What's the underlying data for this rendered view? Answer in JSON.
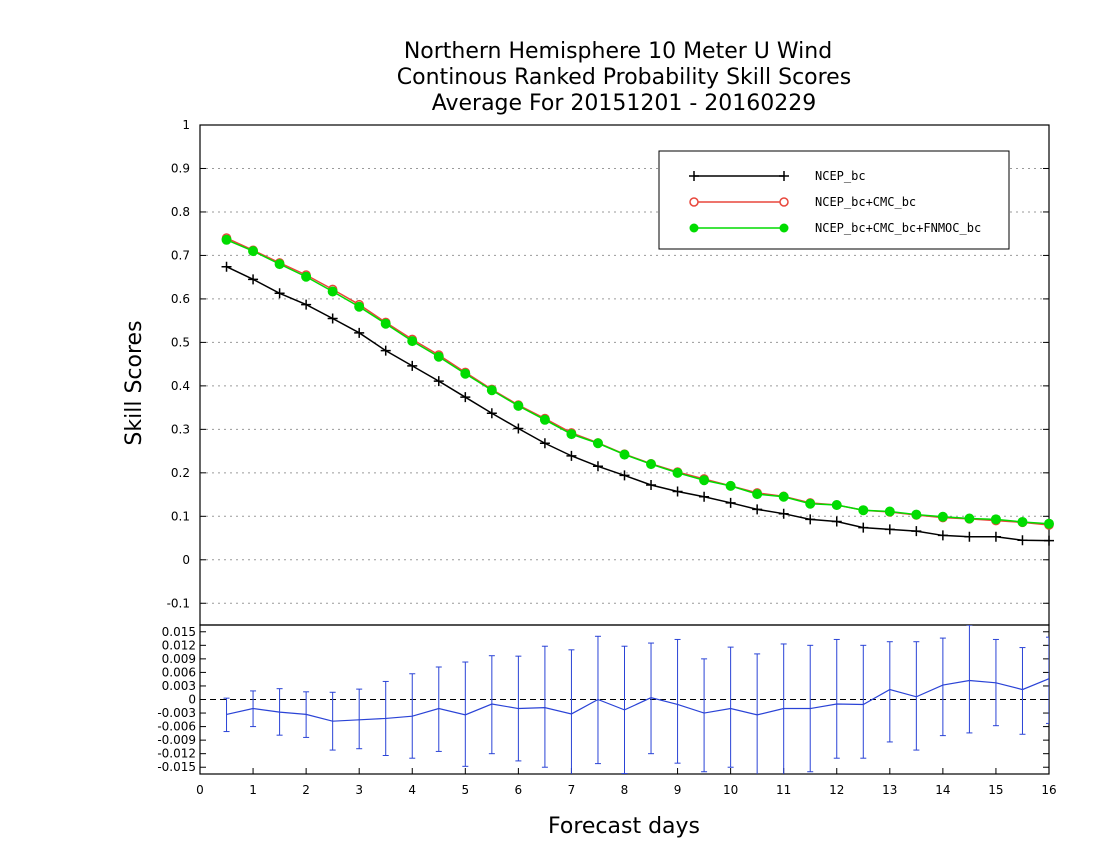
{
  "title": {
    "line1": "Northern Hemisphere 10 Meter U Wind",
    "line2": "Continous Ranked Probability Skill Scores",
    "line3": "Average For 20151201 - 20160229"
  },
  "chart_data": [
    {
      "type": "line",
      "ylabel": "Skill Scores",
      "xlabel": "Forecast days",
      "xlim": [
        0,
        16
      ],
      "ylim": [
        -0.15,
        1.0
      ],
      "yticks": [
        "1",
        "0.9",
        "0.8",
        "0.7",
        "0.6",
        "0.5",
        "0.4",
        "0.3",
        "0.2",
        "0.1",
        "0",
        "-0.1"
      ],
      "grid": true,
      "legend_position": "top-right",
      "x": [
        0.5,
        1.0,
        1.5,
        2.0,
        2.5,
        3.0,
        3.5,
        4.0,
        4.5,
        5.0,
        5.5,
        6.0,
        6.5,
        7.0,
        7.5,
        8.0,
        8.5,
        9.0,
        9.5,
        10.0,
        10.5,
        11.0,
        11.5,
        12.0,
        12.5,
        13.0,
        13.5,
        14.0,
        14.5,
        15.0,
        15.5,
        16.0
      ],
      "series": [
        {
          "name": "NCEP_bc",
          "color": "#000000",
          "marker": "plus",
          "values": [
            0.674,
            0.645,
            0.613,
            0.587,
            0.555,
            0.522,
            0.481,
            0.446,
            0.411,
            0.374,
            0.337,
            0.302,
            0.268,
            0.239,
            0.215,
            0.194,
            0.172,
            0.157,
            0.145,
            0.131,
            0.116,
            0.106,
            0.093,
            0.088,
            0.074,
            0.07,
            0.066,
            0.056,
            0.053,
            0.053,
            0.045,
            0.044
          ]
        },
        {
          "name": "NCEP_bc+CMC_bc",
          "color": "#e8463b",
          "marker": "open-circle",
          "values": [
            0.74,
            0.712,
            0.683,
            0.655,
            0.622,
            0.587,
            0.546,
            0.507,
            0.471,
            0.431,
            0.392,
            0.356,
            0.325,
            0.292,
            0.269,
            0.243,
            0.221,
            0.202,
            0.186,
            0.17,
            0.154,
            0.146,
            0.131,
            0.126,
            0.114,
            0.11,
            0.103,
            0.097,
            0.094,
            0.09,
            0.086,
            0.08
          ]
        },
        {
          "name": "NCEP_bc+CMC_bc+FNMOC_bc",
          "color": "#00dc00",
          "marker": "filled-circle",
          "values": [
            0.736,
            0.71,
            0.68,
            0.651,
            0.617,
            0.582,
            0.543,
            0.503,
            0.467,
            0.428,
            0.39,
            0.354,
            0.322,
            0.289,
            0.268,
            0.242,
            0.22,
            0.2,
            0.183,
            0.17,
            0.151,
            0.145,
            0.129,
            0.126,
            0.114,
            0.111,
            0.104,
            0.099,
            0.095,
            0.093,
            0.087,
            0.083
          ]
        }
      ]
    },
    {
      "type": "line",
      "xlabel": "Forecast days",
      "xlim": [
        0,
        16
      ],
      "xticks": [
        "0",
        "1",
        "2",
        "3",
        "4",
        "5",
        "6",
        "7",
        "8",
        "9",
        "10",
        "11",
        "12",
        "13",
        "14",
        "15",
        "16"
      ],
      "ylim": [
        -0.0165,
        0.0165
      ],
      "yticks": [
        "0.015",
        "0.012",
        "0.009",
        "0.006",
        "0.003",
        "0",
        "-0.003",
        "-0.006",
        "-0.009",
        "-0.012",
        "-0.015"
      ],
      "reference_line": 0,
      "x": [
        0.5,
        1.0,
        1.5,
        2.0,
        2.5,
        3.0,
        3.5,
        4.0,
        4.5,
        5.0,
        5.5,
        6.0,
        6.5,
        7.0,
        7.5,
        8.0,
        8.5,
        9.0,
        9.5,
        10.0,
        10.5,
        11.0,
        11.5,
        12.0,
        12.5,
        13.0,
        13.5,
        14.0,
        14.5,
        15.0,
        15.5,
        16.0
      ],
      "series": [
        {
          "color": "#2a43d6",
          "error_bars": true,
          "values": [
            -0.0033,
            -0.002,
            -0.0028,
            -0.0033,
            -0.0048,
            -0.0045,
            -0.0042,
            -0.0037,
            -0.002,
            -0.0034,
            -0.001,
            -0.002,
            -0.0018,
            -0.0032,
            0.0,
            -0.0023,
            0.0004,
            -0.0011,
            -0.003,
            -0.002,
            -0.0034,
            -0.002,
            -0.002,
            -0.001,
            -0.0011,
            0.0022,
            0.0006,
            0.0032,
            0.0042,
            0.0037,
            0.0022,
            0.0046
          ],
          "upper": [
            0.0003,
            0.0019,
            0.0024,
            0.0017,
            0.0016,
            0.0023,
            0.004,
            0.0057,
            0.0072,
            0.0083,
            0.0097,
            0.0096,
            0.0118,
            0.011,
            0.014,
            0.0118,
            0.0125,
            0.0133,
            0.009,
            0.0116,
            0.0101,
            0.0123,
            0.012,
            0.0133,
            0.012,
            0.0128,
            0.0128,
            0.0136,
            0.0165,
            0.0133,
            0.0115,
            0.0138
          ],
          "lower": [
            -0.0071,
            -0.006,
            -0.0079,
            -0.0084,
            -0.0112,
            -0.0109,
            -0.0124,
            -0.013,
            -0.0115,
            -0.0148,
            -0.012,
            -0.0136,
            -0.015,
            -0.017,
            -0.0142,
            -0.0164,
            -0.012,
            -0.0141,
            -0.016,
            -0.015,
            -0.017,
            -0.0172,
            -0.016,
            -0.013,
            -0.013,
            -0.0094,
            -0.0112,
            -0.008,
            -0.0074,
            -0.0058,
            -0.0077,
            -0.0053
          ]
        }
      ]
    }
  ]
}
